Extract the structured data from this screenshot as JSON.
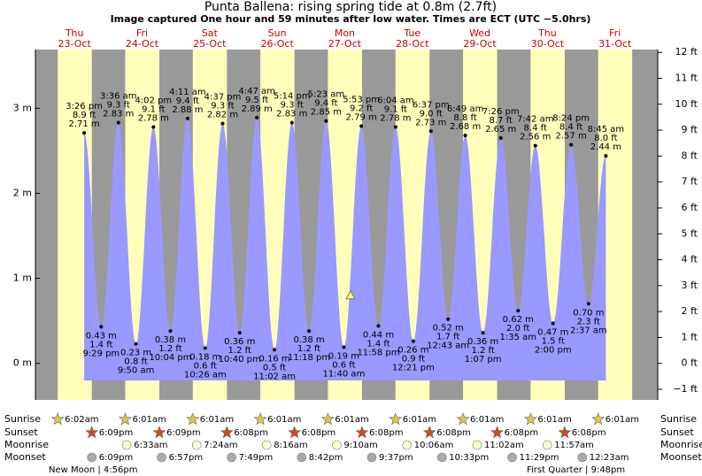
{
  "chart_data": {
    "type": "tide",
    "title": "Punta Ballena: rising  spring tide at 0.8m (2.7ft)",
    "subtitle": "Image captured One hour and 59 minutes after low water. Times are ECT (UTC −5.0hrs)",
    "categories": [
      "Thu",
      "Fri",
      "Sat",
      "Sun",
      "Mon",
      "Tue",
      "Wed",
      "Thu",
      "Fri"
    ],
    "dates": [
      "23-Oct",
      "24-Oct",
      "25-Oct",
      "26-Oct",
      "27-Oct",
      "28-Oct",
      "29-Oct",
      "30-Oct",
      "31-Oct"
    ],
    "x": [
      "3:26 pm",
      "9:29 pm",
      "3:36 am",
      "9:50 am",
      "4:02 pm",
      "10:04 pm",
      "4:11 am",
      "10:26 am",
      "4:37 pm",
      "10:40 pm",
      "4:47 am",
      "11:02 am",
      "5:14 pm",
      "11:18 pm",
      "5:23 am",
      "11:40 am",
      "5:53 pm",
      "11:58 pm",
      "6:04 am",
      "12:21 pm",
      "6:37 pm",
      "12:43 am",
      "6:49 am",
      "1:07 pm",
      "7:26 pm",
      "1:35 am",
      "7:42 am",
      "2:00 pm",
      "8:24 pm",
      "2:37 am",
      "8:45 am"
    ],
    "values": [
      2.71,
      0.43,
      2.83,
      0.23,
      2.78,
      0.38,
      2.88,
      0.18,
      2.82,
      0.36,
      2.89,
      0.16,
      2.83,
      0.38,
      2.85,
      0.19,
      2.79,
      0.44,
      2.78,
      0.26,
      2.73,
      0.52,
      2.68,
      0.36,
      2.65,
      0.62,
      2.56,
      0.47,
      2.57,
      0.7,
      2.44
    ],
    "value_labels": [
      "2.71 m",
      "0.43 m",
      "2.83 m",
      "0.23 m",
      "2.78 m",
      "0.38 m",
      "2.88 m",
      "0.18 m",
      "2.82 m",
      "0.36 m",
      "2.89 m",
      "0.16 m",
      "2.83 m",
      "0.38 m",
      "2.85 m",
      "0.19 m",
      "2.79 m",
      "0.44 m",
      "2.78 m",
      "0.26 m",
      "2.73 m",
      "0.52 m",
      "2.68 m",
      "0.36 m",
      "2.65 m",
      "0.62 m",
      "2.56 m",
      "0.47 m",
      "2.57 m",
      "0.70 m",
      "2.44 m"
    ],
    "values_ft": [
      8.9,
      1.4,
      9.3,
      0.8,
      9.1,
      1.2,
      9.4,
      0.6,
      9.3,
      1.2,
      9.5,
      0.5,
      9.3,
      1.2,
      9.4,
      0.6,
      9.2,
      1.4,
      9.1,
      0.9,
      9.0,
      1.7,
      8.8,
      1.2,
      8.7,
      2.0,
      8.4,
      1.5,
      8.4,
      2.3,
      8.0
    ],
    "value_labels_ft": [
      "8.9 ft",
      "1.4 ft",
      "9.3 ft",
      "0.8 ft",
      "9.1 ft",
      "1.2 ft",
      "9.4 ft",
      "0.6 ft",
      "9.3 ft",
      "1.2 ft",
      "9.5 ft",
      "0.5 ft",
      "9.3 ft",
      "1.2 ft",
      "9.4 ft",
      "0.6 ft",
      "9.2 ft",
      "1.4 ft",
      "9.1 ft",
      "0.9 ft",
      "9.0 ft",
      "1.7 ft",
      "8.8 ft",
      "1.2 ft",
      "8.7 ft",
      "2.0 ft",
      "8.4 ft",
      "1.5 ft",
      "8.4 ft",
      "2.3 ft",
      "8.0 ft"
    ],
    "current": 0.8,
    "ylim": [
      -0.43,
      3.69
    ],
    "yticks": [
      {
        "value": 0,
        "label": "0 m"
      },
      {
        "value": 1,
        "label": "1 m"
      },
      {
        "value": 2,
        "label": "2 m"
      },
      {
        "value": 3,
        "label": "3 m"
      }
    ],
    "y2lim": [
      -1.41,
      12.11
    ],
    "y2ticks": [
      {
        "value": -1,
        "label": "−1 ft"
      },
      {
        "value": 0,
        "label": "0 ft"
      },
      {
        "value": 1,
        "label": "1 ft"
      },
      {
        "value": 2,
        "label": "2 ft"
      },
      {
        "value": 3,
        "label": "3 ft"
      },
      {
        "value": 4,
        "label": "4 ft"
      },
      {
        "value": 5,
        "label": "5 ft"
      },
      {
        "value": 6,
        "label": "6 ft"
      },
      {
        "value": 7,
        "label": "7 ft"
      },
      {
        "value": 8,
        "label": "8 ft"
      },
      {
        "value": 9,
        "label": "9 ft"
      },
      {
        "value": 10,
        "label": "10 ft"
      },
      {
        "value": 11,
        "label": "11 ft"
      },
      {
        "value": 12,
        "label": "12 ft"
      }
    ],
    "row_labels": [
      "Sunrise",
      "Sunset",
      "Moonrise",
      "Moonset"
    ],
    "sunrise": [
      "6:02am",
      "6:01am",
      "6:01am",
      "6:01am",
      "6:01am",
      "6:01am",
      "6:01am",
      "6:01am",
      "6:01am"
    ],
    "sunset": [
      "6:09pm",
      "6:09pm",
      "6:08pm",
      "6:08pm",
      "6:08pm",
      "6:08pm",
      "6:08pm",
      "6:08pm",
      null
    ],
    "moonrise": [
      null,
      "6:33am",
      "7:24am",
      "8:16am",
      "9:10am",
      "10:06am",
      "11:02am",
      "11:57am",
      null
    ],
    "moonset": [
      "6:09pm",
      "6:57pm",
      "7:49pm",
      "8:42pm",
      "9:37pm",
      "10:33pm",
      "11:29pm",
      null,
      "12:23am"
    ],
    "moon_phases": [
      "New Moon | 4:56pm",
      "First Quarter | 9:48pm"
    ]
  }
}
